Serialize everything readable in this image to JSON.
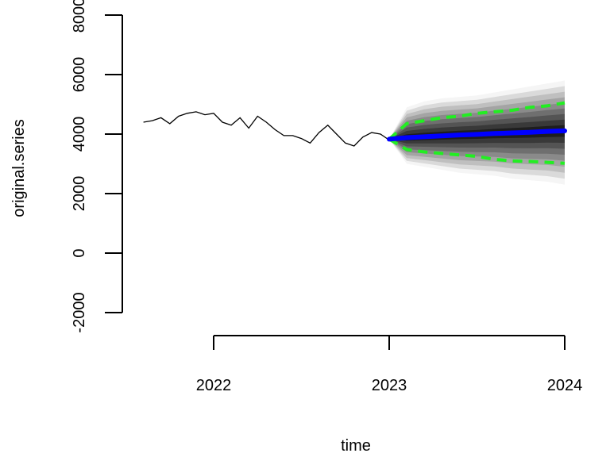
{
  "chart_data": {
    "type": "line",
    "xlabel": "time",
    "ylabel": "original.series",
    "ylim": [
      -2000,
      8000
    ],
    "yticks": [
      -2000,
      0,
      2000,
      4000,
      6000,
      8000
    ],
    "xlim": [
      2021.5,
      2024.0
    ],
    "xticks": [
      2022,
      2023,
      2024
    ],
    "history": {
      "x": [
        2021.6,
        2021.65,
        2021.7,
        2021.75,
        2021.8,
        2021.85,
        2021.9,
        2021.95,
        2022.0,
        2022.05,
        2022.1,
        2022.15,
        2022.2,
        2022.25,
        2022.3,
        2022.35,
        2022.4,
        2022.45,
        2022.5,
        2022.55,
        2022.6,
        2022.65,
        2022.7,
        2022.75,
        2022.8,
        2022.85,
        2022.9,
        2022.95,
        2023.0
      ],
      "y": [
        4400,
        4450,
        4550,
        4350,
        4600,
        4700,
        4750,
        4650,
        4700,
        4400,
        4300,
        4550,
        4200,
        4600,
        4400,
        4150,
        3950,
        3950,
        3850,
        3700,
        4050,
        4300,
        4000,
        3700,
        3600,
        3900,
        4050,
        4000,
        3800
      ]
    },
    "forecast": {
      "x": [
        2023.0,
        2023.1,
        2023.2,
        2023.3,
        2023.4,
        2023.5,
        2023.6,
        2023.7,
        2023.8,
        2023.9,
        2024.0
      ],
      "mean": [
        3830,
        3880,
        3910,
        3940,
        3970,
        3990,
        4020,
        4040,
        4060,
        4090,
        4110
      ],
      "upper": [
        3830,
        4350,
        4450,
        4550,
        4600,
        4700,
        4750,
        4800,
        4900,
        4950,
        5050
      ],
      "lower": [
        3830,
        3480,
        3400,
        3350,
        3300,
        3250,
        3150,
        3100,
        3080,
        3050,
        3020
      ],
      "fan_upper": [
        3830,
        4900,
        5100,
        5200,
        5250,
        5300,
        5400,
        5500,
        5600,
        5700,
        5800
      ],
      "fan_lower": [
        3830,
        3000,
        2900,
        2800,
        2700,
        2650,
        2600,
        2500,
        2450,
        2400,
        2300
      ]
    },
    "colors": {
      "history": "#000000",
      "mean": "#0000ff",
      "interval": "#22ee22"
    }
  }
}
